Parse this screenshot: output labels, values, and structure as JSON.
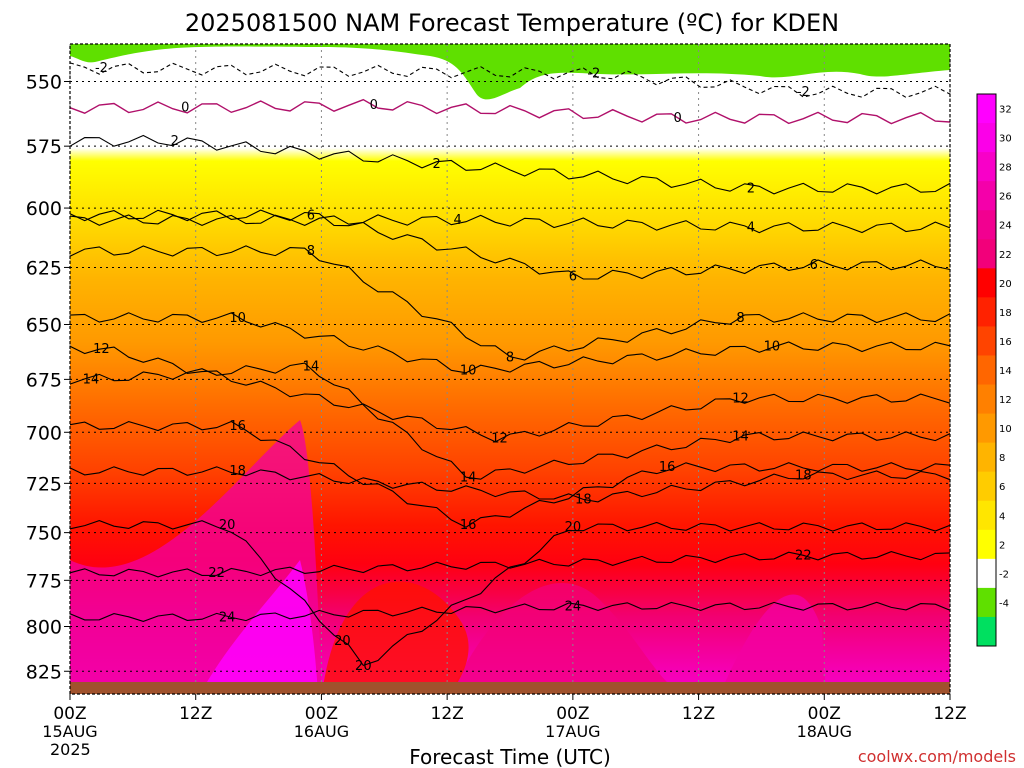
{
  "title": "2025081500 NAM Forecast Temperature (ºC) for KDEN",
  "watermark": "coolwx.com/models",
  "chart_data": {
    "type": "heatmap",
    "title": "2025081500 NAM Forecast Temperature (ºC) for KDEN",
    "xlabel": "Forecast Time (UTC)",
    "ylabel": "",
    "xlim": [
      0,
      84
    ],
    "ylim": [
      838,
      536
    ],
    "y_axis": "pressure (hPa), inverted, log",
    "y_ticks": [
      550,
      575,
      600,
      625,
      650,
      675,
      700,
      725,
      750,
      775,
      800,
      825
    ],
    "x_ticks": [
      {
        "hour": 0,
        "label": "00Z",
        "sub": "15AUG",
        "sub2": "2025"
      },
      {
        "hour": 12,
        "label": "12Z",
        "sub": "",
        "sub2": ""
      },
      {
        "hour": 24,
        "label": "00Z",
        "sub": "16AUG",
        "sub2": ""
      },
      {
        "hour": 36,
        "label": "12Z",
        "sub": "",
        "sub2": ""
      },
      {
        "hour": 48,
        "label": "00Z",
        "sub": "17AUG",
        "sub2": ""
      },
      {
        "hour": 60,
        "label": "12Z",
        "sub": "",
        "sub2": ""
      },
      {
        "hour": 72,
        "label": "00Z",
        "sub": "18AUG",
        "sub2": ""
      },
      {
        "hour": 84,
        "label": "12Z",
        "sub": "",
        "sub2": ""
      }
    ],
    "colorbar": {
      "labels": [
        "32",
        "30",
        "28",
        "26",
        "24",
        "22",
        "20",
        "18",
        "16",
        "14",
        "12",
        "10",
        "8",
        "6",
        "4",
        "2",
        "-2",
        "-4"
      ],
      "colors": [
        "#ff00ff",
        "#fb00e8",
        "#f800c8",
        "#f400aa",
        "#f20090",
        "#f2007a",
        "#ff0000",
        "#ff2200",
        "#ff4400",
        "#ff6600",
        "#ff8000",
        "#ff9900",
        "#ffb400",
        "#ffcc00",
        "#ffe600",
        "#ffff00",
        "#ffffff",
        "#5fe000",
        "#00e060"
      ]
    },
    "contours": [
      {
        "level": -2,
        "labels": [
          [
            3,
            545
          ],
          [
            50,
            547
          ],
          [
            70,
            554
          ]
        ]
      },
      {
        "level": 0,
        "labels": [
          [
            11,
            560
          ],
          [
            29,
            559
          ],
          [
            58,
            564
          ]
        ]
      },
      {
        "level": 2,
        "labels": [
          [
            10,
            573
          ],
          [
            35,
            582
          ],
          [
            65,
            592
          ]
        ]
      },
      {
        "level": 4,
        "labels": [
          [
            37,
            605
          ],
          [
            65,
            608
          ]
        ]
      },
      {
        "level": 6,
        "labels": [
          [
            23,
            603
          ],
          [
            48,
            629
          ],
          [
            71,
            624
          ]
        ]
      },
      {
        "level": 8,
        "labels": [
          [
            23,
            618
          ],
          [
            42,
            665
          ],
          [
            64,
            647
          ]
        ]
      },
      {
        "level": 10,
        "labels": [
          [
            16,
            647
          ],
          [
            38,
            671
          ],
          [
            67,
            660
          ]
        ]
      },
      {
        "level": 12,
        "labels": [
          [
            3,
            661
          ],
          [
            41,
            703
          ],
          [
            64,
            684
          ]
        ]
      },
      {
        "level": 14,
        "labels": [
          [
            2,
            675
          ],
          [
            23,
            669
          ],
          [
            38,
            722
          ],
          [
            64,
            702
          ]
        ]
      },
      {
        "level": 16,
        "labels": [
          [
            16,
            697
          ],
          [
            38,
            746
          ],
          [
            57,
            717
          ]
        ]
      },
      {
        "level": 18,
        "labels": [
          [
            16,
            719
          ],
          [
            49,
            733
          ],
          [
            70,
            721
          ]
        ]
      },
      {
        "level": 20,
        "labels": [
          [
            15,
            746
          ],
          [
            26,
            808
          ],
          [
            28,
            822
          ],
          [
            48,
            747
          ]
        ]
      },
      {
        "level": 22,
        "labels": [
          [
            14,
            771
          ],
          [
            70,
            762
          ]
        ]
      },
      {
        "level": 24,
        "labels": [
          [
            15,
            795
          ],
          [
            48,
            789
          ]
        ]
      }
    ]
  }
}
